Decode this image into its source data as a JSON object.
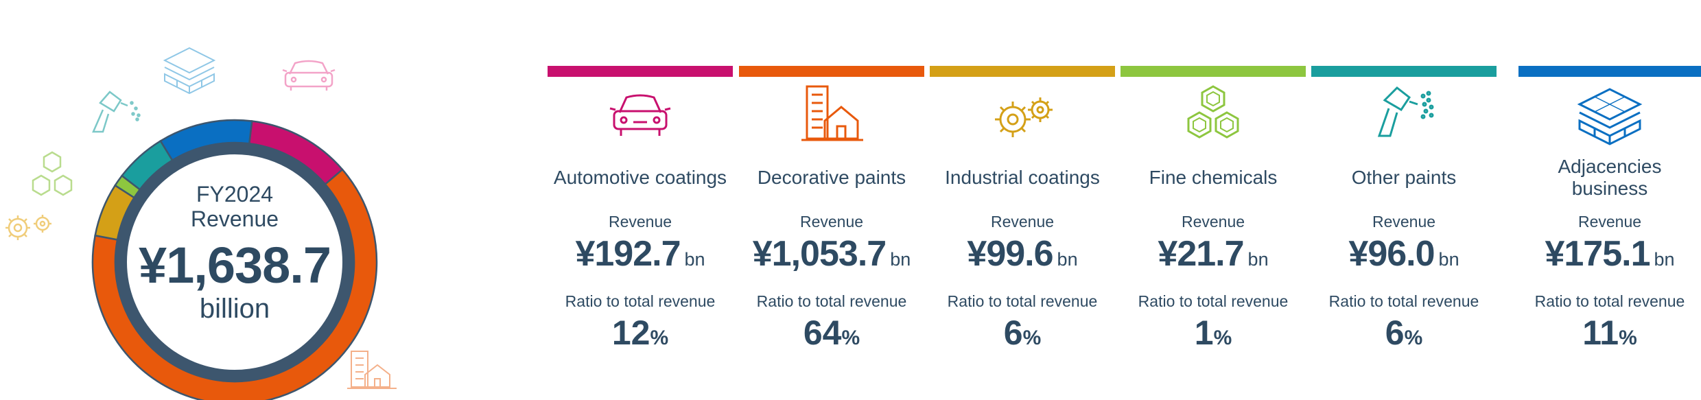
{
  "chart_data": {
    "type": "pie",
    "center": {
      "fiscal_year": "FY2024",
      "metric": "Revenue",
      "total": "¥1,638.7",
      "unit": "billion"
    },
    "categories": [
      "Automotive coatings",
      "Decorative paints",
      "Industrial coatings",
      "Fine chemicals",
      "Other paints",
      "Adjacencies business"
    ],
    "values": [
      192.7,
      1053.7,
      99.6,
      21.7,
      96.0,
      175.1
    ],
    "start_angle_deg": 7,
    "segments": [
      {
        "name": "Automotive coatings",
        "color": "#c8106e",
        "icon": "car-icon",
        "revenue_label": "Revenue",
        "revenue": "¥192.7",
        "revenue_unit": "bn",
        "ratio_label": "Ratio to total revenue",
        "ratio": "12",
        "ratio_unit": "%"
      },
      {
        "name": "Decorative paints",
        "color": "#e8590c",
        "icon": "building-house-icon",
        "revenue_label": "Revenue",
        "revenue": "¥1,053.7",
        "revenue_unit": "bn",
        "ratio_label": "Ratio to total revenue",
        "ratio": "64",
        "ratio_unit": "%"
      },
      {
        "name": "Industrial coatings",
        "color": "#d4a017",
        "icon": "gears-icon",
        "revenue_label": "Revenue",
        "revenue": "¥99.6",
        "revenue_unit": "bn",
        "ratio_label": "Ratio to total revenue",
        "ratio": "6",
        "ratio_unit": "%"
      },
      {
        "name": "Fine chemicals",
        "color": "#8dc63f",
        "icon": "hexagon-molecule-icon",
        "revenue_label": "Revenue",
        "revenue": "¥21.7",
        "revenue_unit": "bn",
        "ratio_label": "Ratio to total revenue",
        "ratio": "1",
        "ratio_unit": "%"
      },
      {
        "name": "Other paints",
        "color": "#1a9e9e",
        "icon": "spray-gun-icon",
        "revenue_label": "Revenue",
        "revenue": "¥96.0",
        "revenue_unit": "bn",
        "ratio_label": "Ratio to total revenue",
        "ratio": "6",
        "ratio_unit": "%"
      },
      {
        "name": "Adjacencies business",
        "color": "#0a6fc2",
        "icon": "layered-grid-icon",
        "revenue_label": "Revenue",
        "revenue": "¥175.1",
        "revenue_unit": "bn",
        "ratio_label": "Ratio to total revenue",
        "ratio": "11",
        "ratio_unit": "%"
      }
    ]
  },
  "colors": {
    "text": "#2e4a62",
    "inner_ring": "#3d566e"
  }
}
